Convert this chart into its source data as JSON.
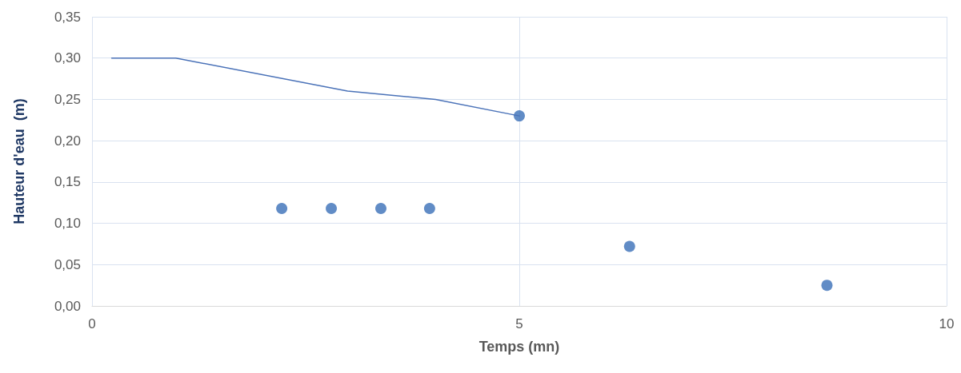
{
  "chart_data": {
    "type": "scatter",
    "xlabel": "Temps (mn)",
    "ylabel": "Hauteur d'eau  (m)",
    "xlim": [
      0,
      10
    ],
    "xticks": [
      0,
      5,
      10
    ],
    "ylim": [
      0,
      0.35
    ],
    "yticks": [
      {
        "value": 0,
        "label": "0,00"
      },
      {
        "value": 0.05,
        "label": "0,05"
      },
      {
        "value": 0.1,
        "label": "0,10"
      },
      {
        "value": 0.15,
        "label": "0,15"
      },
      {
        "value": 0.2,
        "label": "0,20"
      },
      {
        "value": 0.25,
        "label": "0,25"
      },
      {
        "value": 0.3,
        "label": "0,30"
      },
      {
        "value": 0.35,
        "label": "0,35"
      }
    ],
    "grid": true,
    "series": [
      {
        "type": "line",
        "color": "#4a72b8",
        "marker": "none",
        "line_style": "solid",
        "x": [
          0.23,
          0.98,
          2.99,
          4.02,
          5.0
        ],
        "values": [
          0.3,
          0.3,
          0.26,
          0.25,
          0.23
        ]
      },
      {
        "color": "#3a6fb8",
        "marker": "circle",
        "x": [
          2.22,
          2.8,
          3.38,
          3.95,
          5.0,
          6.29,
          8.6
        ],
        "values": [
          0.118,
          0.118,
          0.118,
          0.118,
          0.23,
          0.072,
          0.025
        ]
      }
    ]
  }
}
